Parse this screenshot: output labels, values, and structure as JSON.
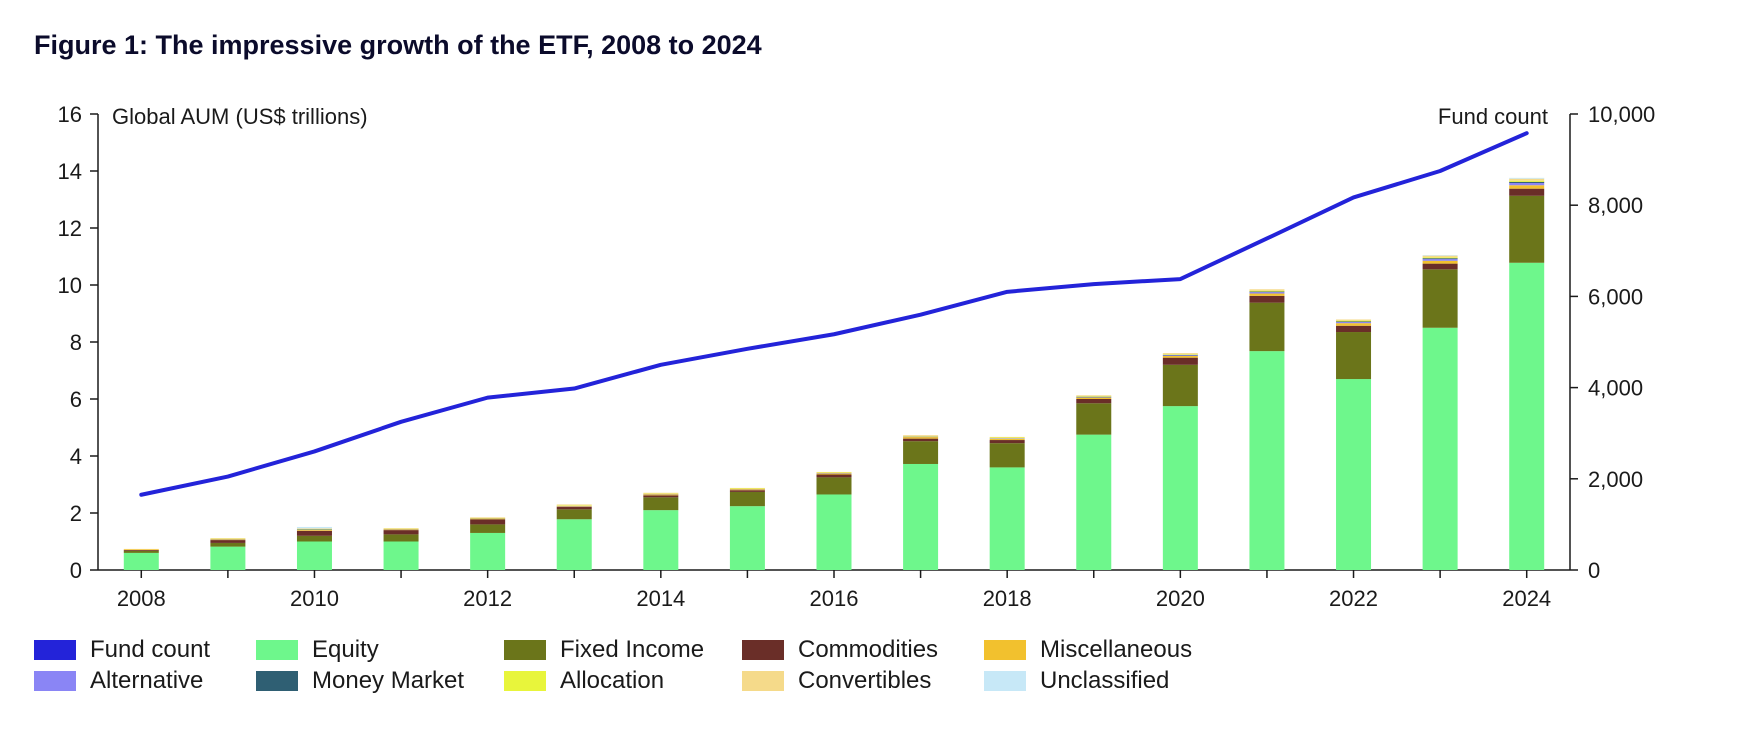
{
  "figure": {
    "title": "Figure 1: The impressive growth of the ETF, 2008 to 2024"
  },
  "chart_data": {
    "type": "bar",
    "stacked": true,
    "secondary_line": true,
    "title": "Figure 1: The impressive growth of the ETF, 2008 to 2024",
    "ylabel": "Global AUM (US$ trillions)",
    "y2label": "Fund count",
    "ylim": [
      0,
      16
    ],
    "y2lim": [
      0,
      10000
    ],
    "yticks": [
      0,
      2,
      4,
      6,
      8,
      10,
      12,
      14,
      16
    ],
    "y2ticks": [
      "0",
      "2,000",
      "4,000",
      "6,000",
      "8,000",
      "10,000"
    ],
    "y2tick_values": [
      0,
      2000,
      4000,
      6000,
      8000,
      10000
    ],
    "xtick_labels": [
      "2008",
      "2010",
      "2012",
      "2014",
      "2016",
      "2018",
      "2020",
      "2022",
      "2024"
    ],
    "categories": [
      "2008",
      "2009",
      "2010",
      "2011",
      "2012",
      "2013",
      "2014",
      "2015",
      "2016",
      "2017",
      "2018",
      "2019",
      "2020",
      "2021",
      "2022",
      "2023",
      "2024"
    ],
    "series": [
      {
        "name": "Equity",
        "color": "#6ef78c",
        "values": [
          0.6,
          0.82,
          1.0,
          1.0,
          1.3,
          1.78,
          2.1,
          2.24,
          2.65,
          3.72,
          3.6,
          4.75,
          5.75,
          7.68,
          6.7,
          8.5,
          10.78
        ]
      },
      {
        "name": "Fixed Income",
        "color": "#6b751a",
        "values": [
          0.07,
          0.13,
          0.2,
          0.25,
          0.3,
          0.35,
          0.45,
          0.5,
          0.6,
          0.8,
          0.85,
          1.1,
          1.45,
          1.7,
          1.65,
          2.05,
          2.35
        ]
      },
      {
        "name": "Commodities",
        "color": "#6a2e28",
        "values": [
          0.03,
          0.1,
          0.17,
          0.15,
          0.18,
          0.08,
          0.07,
          0.06,
          0.1,
          0.09,
          0.11,
          0.15,
          0.25,
          0.24,
          0.22,
          0.2,
          0.25
        ]
      },
      {
        "name": "Miscellaneous",
        "color": "#f2c12e",
        "values": [
          0.02,
          0.03,
          0.03,
          0.03,
          0.03,
          0.03,
          0.04,
          0.04,
          0.04,
          0.06,
          0.04,
          0.05,
          0.06,
          0.08,
          0.09,
          0.1,
          0.12
        ]
      },
      {
        "name": "Alternative",
        "color": "#8a85f5",
        "values": [
          0.0,
          0.01,
          0.02,
          0.01,
          0.01,
          0.01,
          0.01,
          0.01,
          0.01,
          0.01,
          0.02,
          0.02,
          0.03,
          0.05,
          0.04,
          0.06,
          0.08
        ]
      },
      {
        "name": "Money Market",
        "color": "#2f5f73",
        "values": [
          0.0,
          0.0,
          0.01,
          0.0,
          0.0,
          0.0,
          0.0,
          0.0,
          0.0,
          0.0,
          0.0,
          0.01,
          0.01,
          0.02,
          0.02,
          0.03,
          0.04
        ]
      },
      {
        "name": "Allocation",
        "color": "#e8f53b",
        "values": [
          0.0,
          0.01,
          0.01,
          0.01,
          0.01,
          0.02,
          0.01,
          0.01,
          0.02,
          0.02,
          0.03,
          0.02,
          0.02,
          0.03,
          0.03,
          0.03,
          0.04
        ]
      },
      {
        "name": "Convertibles",
        "color": "#f5da8a",
        "values": [
          0.02,
          0.02,
          0.02,
          0.02,
          0.02,
          0.03,
          0.03,
          0.02,
          0.02,
          0.03,
          0.02,
          0.03,
          0.04,
          0.05,
          0.04,
          0.06,
          0.07
        ]
      },
      {
        "name": "Unclassified",
        "color": "#c7e8f7",
        "values": [
          0.0,
          0.0,
          0.05,
          0.0,
          0.0,
          0.0,
          0.0,
          0.0,
          0.0,
          0.0,
          0.0,
          0.0,
          0.0,
          0.0,
          0.0,
          0.02,
          0.03
        ]
      }
    ],
    "line": {
      "name": "Fund count",
      "color": "#2323d9",
      "values": [
        1650,
        2050,
        2600,
        3250,
        3780,
        3980,
        4500,
        4850,
        5170,
        5600,
        6100,
        6270,
        6380,
        7270,
        8170,
        8750,
        9580
      ]
    }
  },
  "legend": {
    "items": [
      {
        "label": "Fund count",
        "color": "#2323d9"
      },
      {
        "label": "Equity",
        "color": "#6ef78c"
      },
      {
        "label": "Fixed Income",
        "color": "#6b751a"
      },
      {
        "label": "Commodities",
        "color": "#6a2e28"
      },
      {
        "label": "Miscellaneous",
        "color": "#f2c12e"
      },
      {
        "label": "Alternative",
        "color": "#8a85f5"
      },
      {
        "label": "Money Market",
        "color": "#2f5f73"
      },
      {
        "label": "Allocation",
        "color": "#e8f53b"
      },
      {
        "label": "Convertibles",
        "color": "#f5da8a"
      },
      {
        "label": "Unclassified",
        "color": "#c7e8f7"
      }
    ]
  }
}
